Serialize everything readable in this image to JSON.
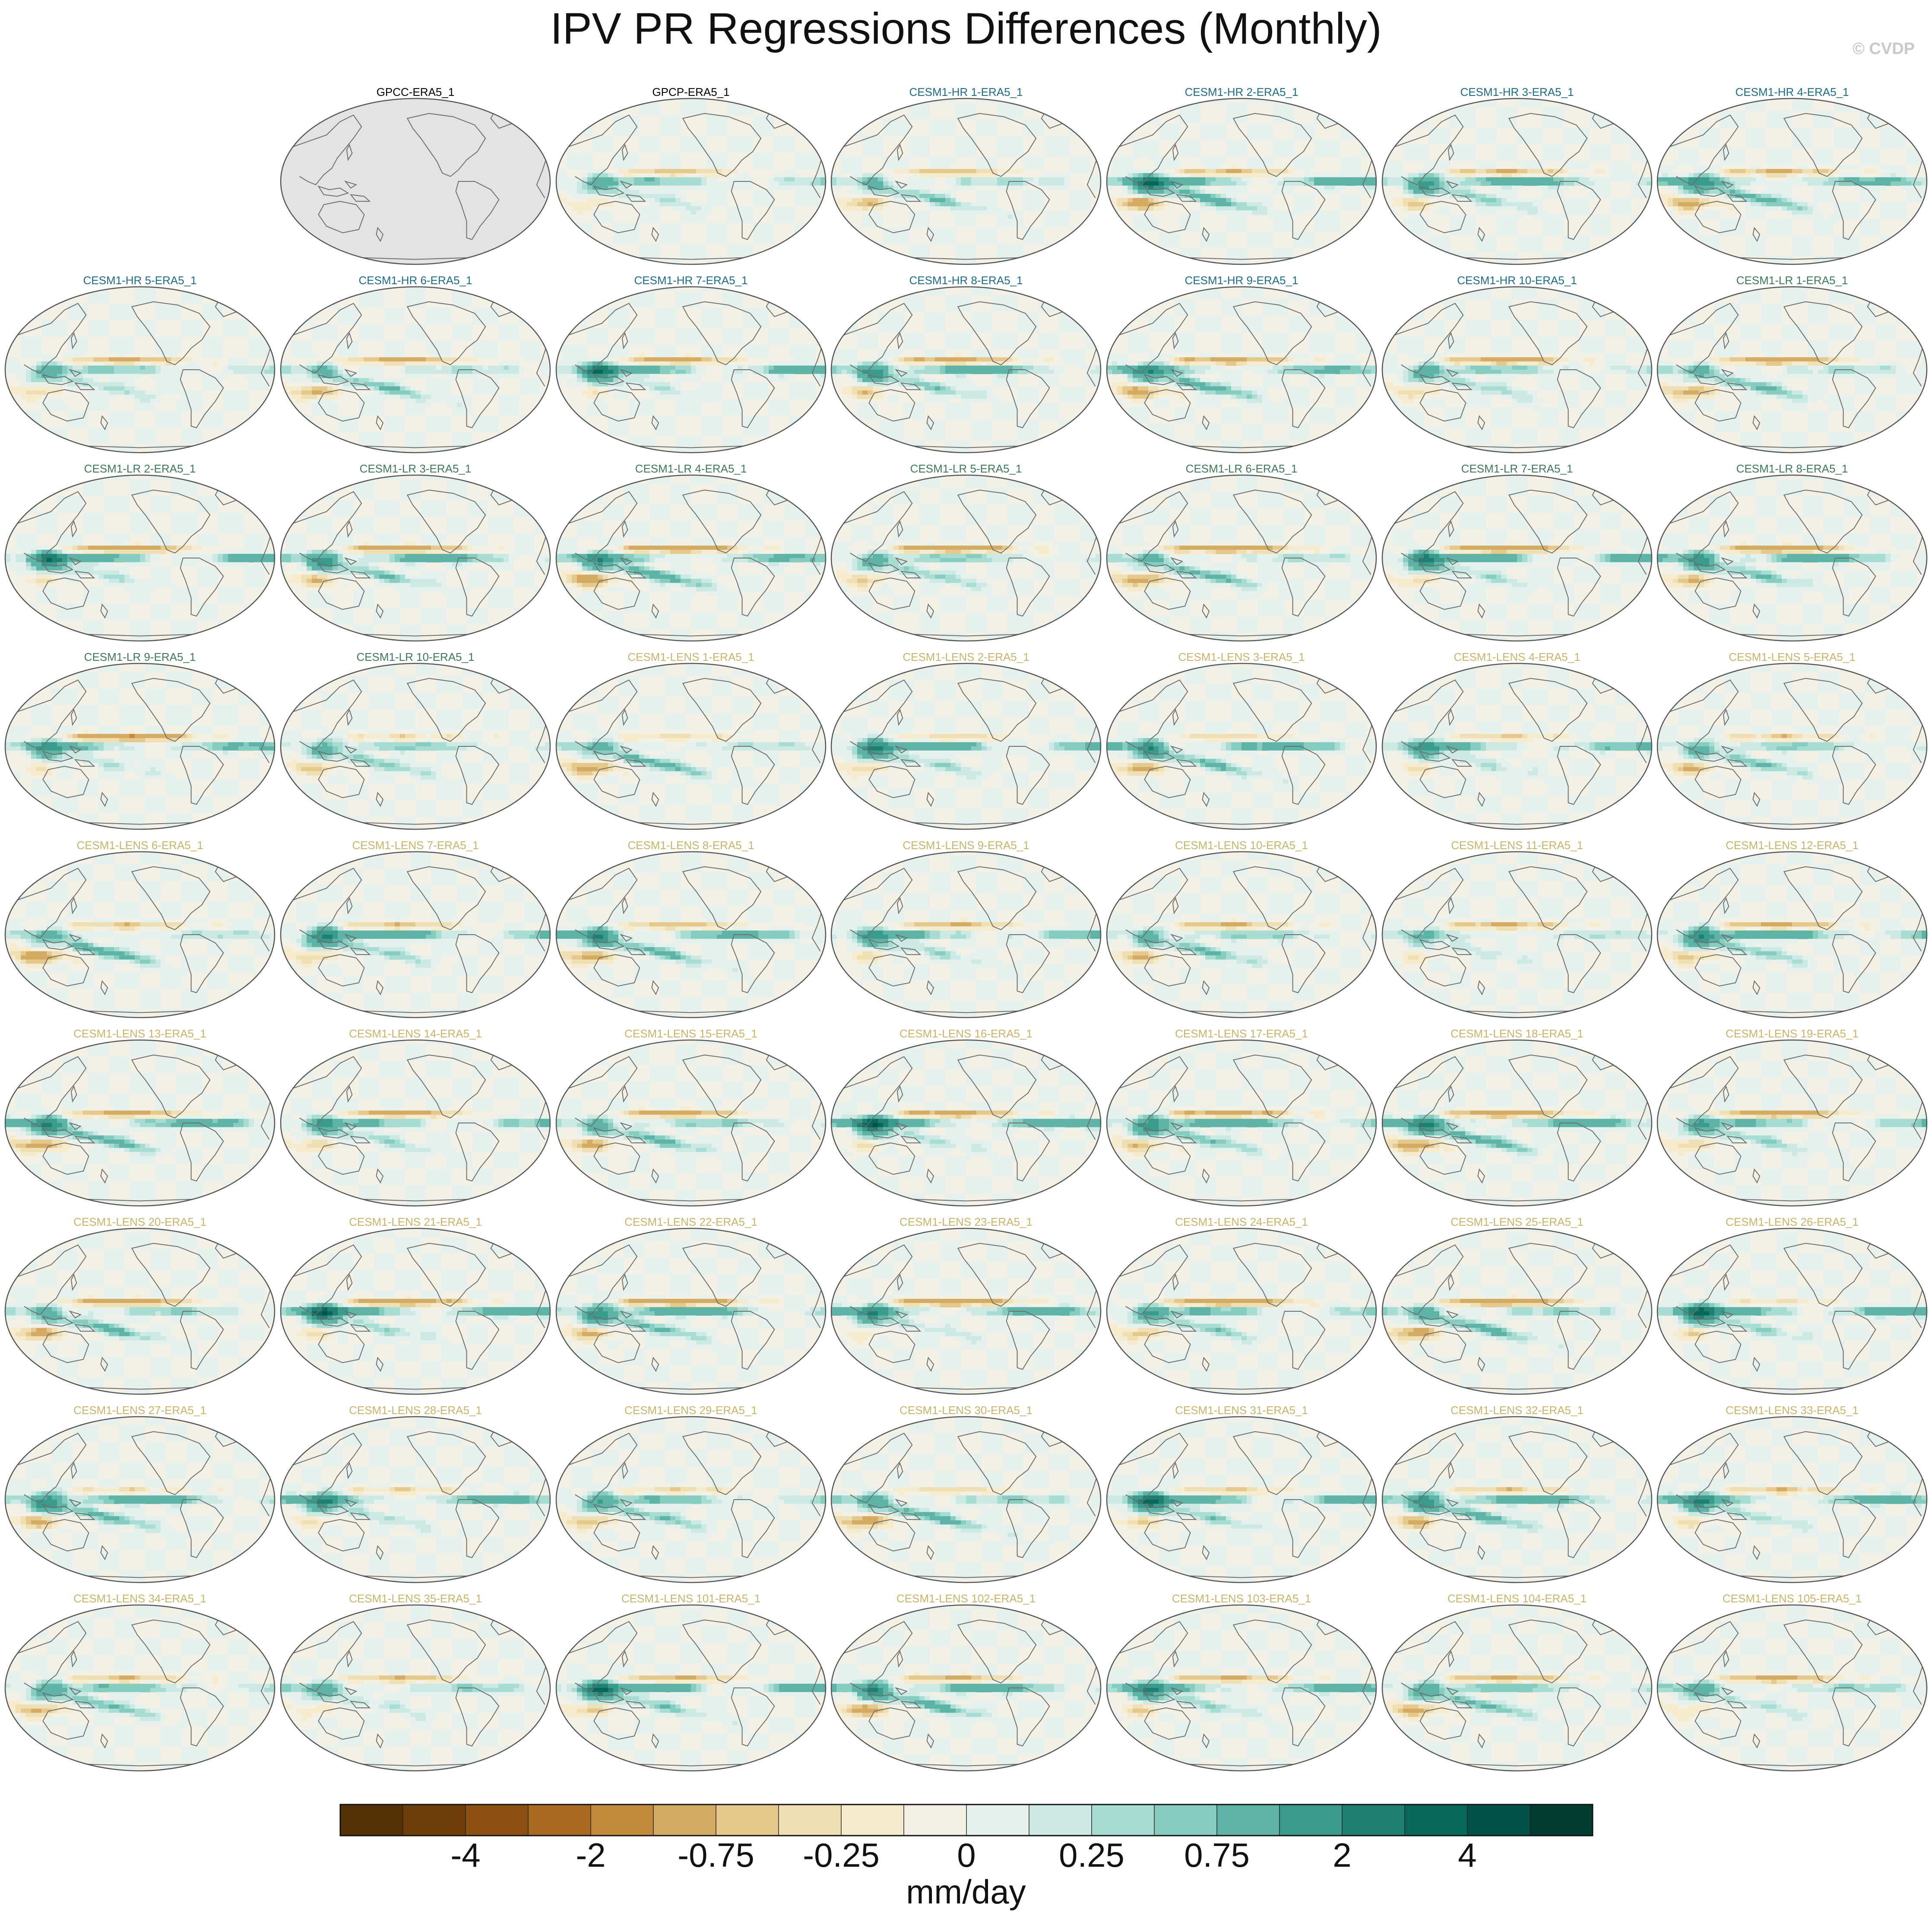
{
  "title": "IPV PR Regressions Differences (Monthly)",
  "watermark": "© CVDP",
  "colors": {
    "obs_title": "#000000",
    "hr_title": "#1f6b8c",
    "lr_title": "#3f7a58",
    "lens_title": "#c9b46a",
    "land_missing": "#e3e3e3",
    "coast": "#6e6e6e"
  },
  "panels": [
    {
      "label": "GPCC-ERA5_1",
      "group": "obs",
      "missing": true
    },
    {
      "label": "GPCP-ERA5_1",
      "group": "obs",
      "missing": false
    },
    {
      "label": "CESM1-HR 1-ERA5_1",
      "group": "hr"
    },
    {
      "label": "CESM1-HR 2-ERA5_1",
      "group": "hr"
    },
    {
      "label": "CESM1-HR 3-ERA5_1",
      "group": "hr"
    },
    {
      "label": "CESM1-HR 4-ERA5_1",
      "group": "hr"
    },
    {
      "label": "CESM1-HR 5-ERA5_1",
      "group": "hr"
    },
    {
      "label": "CESM1-HR 6-ERA5_1",
      "group": "hr"
    },
    {
      "label": "CESM1-HR 7-ERA5_1",
      "group": "hr"
    },
    {
      "label": "CESM1-HR 8-ERA5_1",
      "group": "hr"
    },
    {
      "label": "CESM1-HR 9-ERA5_1",
      "group": "hr"
    },
    {
      "label": "CESM1-HR 10-ERA5_1",
      "group": "hr"
    },
    {
      "label": "CESM1-LR 1-ERA5_1",
      "group": "lr"
    },
    {
      "label": "CESM1-LR 2-ERA5_1",
      "group": "lr"
    },
    {
      "label": "CESM1-LR 3-ERA5_1",
      "group": "lr"
    },
    {
      "label": "CESM1-LR 4-ERA5_1",
      "group": "lr"
    },
    {
      "label": "CESM1-LR 5-ERA5_1",
      "group": "lr"
    },
    {
      "label": "CESM1-LR 6-ERA5_1",
      "group": "lr"
    },
    {
      "label": "CESM1-LR 7-ERA5_1",
      "group": "lr"
    },
    {
      "label": "CESM1-LR 8-ERA5_1",
      "group": "lr"
    },
    {
      "label": "CESM1-LR 9-ERA5_1",
      "group": "lr"
    },
    {
      "label": "CESM1-LR 10-ERA5_1",
      "group": "lr"
    },
    {
      "label": "CESM1-LENS 1-ERA5_1",
      "group": "lens"
    },
    {
      "label": "CESM1-LENS 2-ERA5_1",
      "group": "lens"
    },
    {
      "label": "CESM1-LENS 3-ERA5_1",
      "group": "lens"
    },
    {
      "label": "CESM1-LENS 4-ERA5_1",
      "group": "lens"
    },
    {
      "label": "CESM1-LENS 5-ERA5_1",
      "group": "lens"
    },
    {
      "label": "CESM1-LENS 6-ERA5_1",
      "group": "lens"
    },
    {
      "label": "CESM1-LENS 7-ERA5_1",
      "group": "lens"
    },
    {
      "label": "CESM1-LENS 8-ERA5_1",
      "group": "lens"
    },
    {
      "label": "CESM1-LENS 9-ERA5_1",
      "group": "lens"
    },
    {
      "label": "CESM1-LENS 10-ERA5_1",
      "group": "lens"
    },
    {
      "label": "CESM1-LENS 11-ERA5_1",
      "group": "lens"
    },
    {
      "label": "CESM1-LENS 12-ERA5_1",
      "group": "lens"
    },
    {
      "label": "CESM1-LENS 13-ERA5_1",
      "group": "lens"
    },
    {
      "label": "CESM1-LENS 14-ERA5_1",
      "group": "lens"
    },
    {
      "label": "CESM1-LENS 15-ERA5_1",
      "group": "lens"
    },
    {
      "label": "CESM1-LENS 16-ERA5_1",
      "group": "lens"
    },
    {
      "label": "CESM1-LENS 17-ERA5_1",
      "group": "lens"
    },
    {
      "label": "CESM1-LENS 18-ERA5_1",
      "group": "lens"
    },
    {
      "label": "CESM1-LENS 19-ERA5_1",
      "group": "lens"
    },
    {
      "label": "CESM1-LENS 20-ERA5_1",
      "group": "lens"
    },
    {
      "label": "CESM1-LENS 21-ERA5_1",
      "group": "lens"
    },
    {
      "label": "CESM1-LENS 22-ERA5_1",
      "group": "lens"
    },
    {
      "label": "CESM1-LENS 23-ERA5_1",
      "group": "lens"
    },
    {
      "label": "CESM1-LENS 24-ERA5_1",
      "group": "lens"
    },
    {
      "label": "CESM1-LENS 25-ERA5_1",
      "group": "lens"
    },
    {
      "label": "CESM1-LENS 26-ERA5_1",
      "group": "lens"
    },
    {
      "label": "CESM1-LENS 27-ERA5_1",
      "group": "lens"
    },
    {
      "label": "CESM1-LENS 28-ERA5_1",
      "group": "lens"
    },
    {
      "label": "CESM1-LENS 29-ERA5_1",
      "group": "lens"
    },
    {
      "label": "CESM1-LENS 30-ERA5_1",
      "group": "lens"
    },
    {
      "label": "CESM1-LENS 31-ERA5_1",
      "group": "lens"
    },
    {
      "label": "CESM1-LENS 32-ERA5_1",
      "group": "lens"
    },
    {
      "label": "CESM1-LENS 33-ERA5_1",
      "group": "lens"
    },
    {
      "label": "CESM1-LENS 34-ERA5_1",
      "group": "lens"
    },
    {
      "label": "CESM1-LENS 35-ERA5_1",
      "group": "lens"
    },
    {
      "label": "CESM1-LENS 101-ERA5_1",
      "group": "lens"
    },
    {
      "label": "CESM1-LENS 102-ERA5_1",
      "group": "lens"
    },
    {
      "label": "CESM1-LENS 103-ERA5_1",
      "group": "lens"
    },
    {
      "label": "CESM1-LENS 104-ERA5_1",
      "group": "lens"
    },
    {
      "label": "CESM1-LENS 105-ERA5_1",
      "group": "lens"
    }
  ],
  "chart_data": {
    "type": "heatmap",
    "projection": "Robinson (Pacific-centered) map panels",
    "grid": {
      "rows": 9,
      "cols": 7,
      "first_row_starts_at_col": 1
    },
    "colorbar": {
      "units": "mm/day",
      "tick_labels": [
        "-4",
        "-2",
        "-0.75",
        "-0.25",
        "0",
        "0.25",
        "0.75",
        "2",
        "4"
      ],
      "tick_positions_boundary_index": [
        2,
        4,
        6,
        8,
        10,
        12,
        14,
        16,
        18
      ],
      "colors": [
        "#543005",
        "#6f3f0b",
        "#8c5110",
        "#a76a20",
        "#c28a3c",
        "#d5aa62",
        "#e4c88c",
        "#f0dfb2",
        "#f6ebcd",
        "#f3f0e6",
        "#e6f1ee",
        "#cde9e3",
        "#a8ddd3",
        "#86cdc0",
        "#5db3a5",
        "#3a9b8d",
        "#1f8071",
        "#06675a",
        "#01534a",
        "#003c30"
      ]
    }
  }
}
